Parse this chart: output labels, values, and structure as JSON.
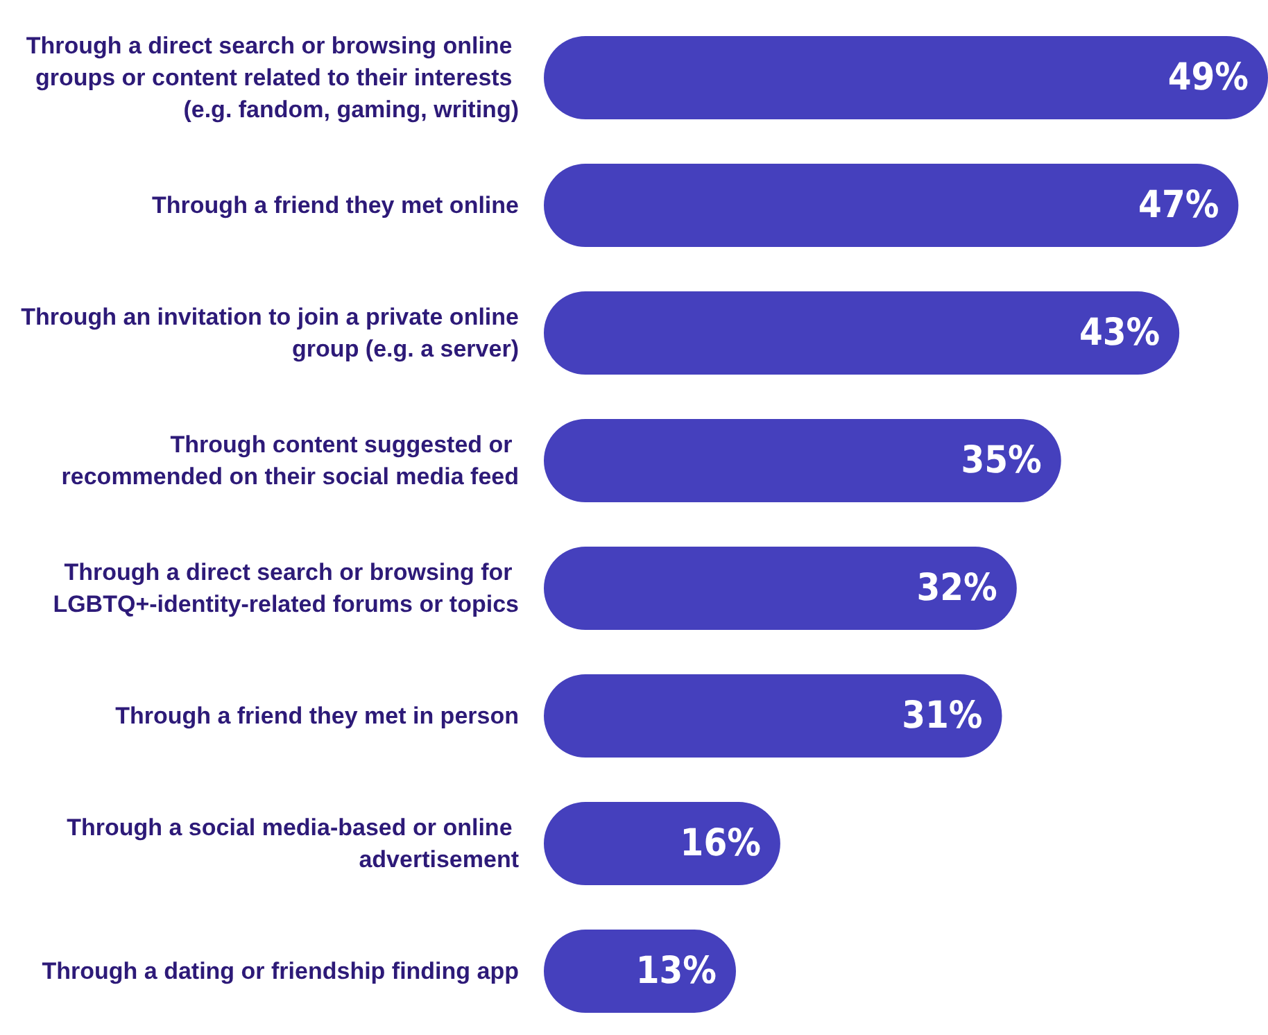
{
  "chart_data": {
    "type": "bar",
    "orientation": "horizontal",
    "relative": false,
    "categories": [
      "Through a direct search or browsing online groups or content related to their interests (e.g. fandom, gaming, writing)",
      "Through a friend they met online",
      "Through an invitation to join a private online group (e.g. a server)",
      "Through content suggested or recommended on their social media feed",
      "Through a direct search or browsing for LGBTQ+-identity-related forums or topics",
      "Through a friend they met in person",
      "Through a social media-based or online advertisement",
      "Through a dating or friendship finding app"
    ],
    "values": [
      49,
      47,
      43,
      35,
      32,
      31,
      16,
      13
    ],
    "value_labels": [
      "49%",
      "47%",
      "43%",
      "35%",
      "32%",
      "31%",
      "16%",
      "13%"
    ],
    "color": "#4540bd"
  }
}
